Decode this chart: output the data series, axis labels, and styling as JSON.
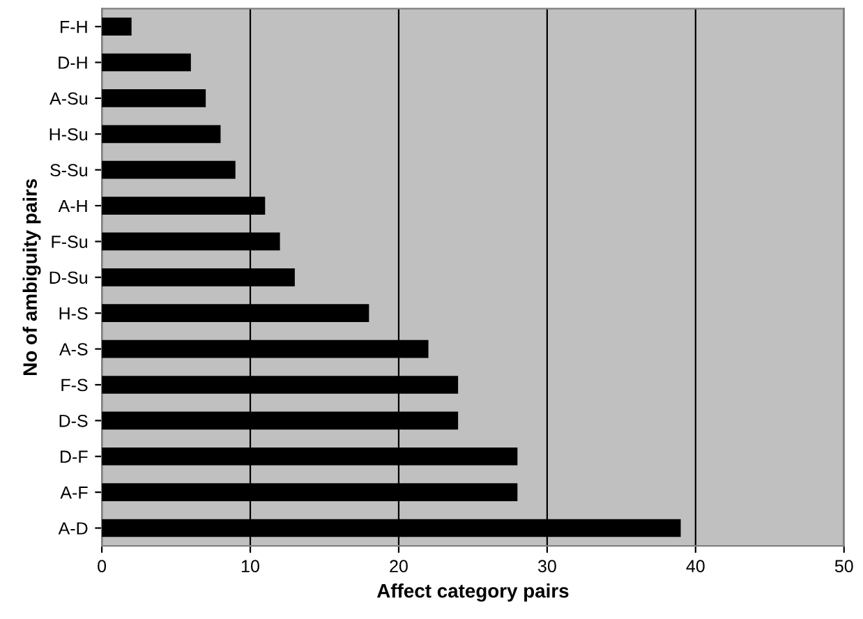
{
  "chart_data": {
    "type": "bar",
    "orientation": "horizontal",
    "xlabel": "Affect category pairs",
    "ylabel": "No of ambiguity pairs",
    "categories": [
      "F-H",
      "D-H",
      "A-Su",
      "H-Su",
      "S-Su",
      "A-H",
      "F-Su",
      "D-Su",
      "H-S",
      "A-S",
      "F-S",
      "D-S",
      "D-F",
      "A-F",
      "A-D"
    ],
    "values": [
      2,
      6,
      7,
      8,
      9,
      11,
      12,
      13,
      18,
      22,
      24,
      24,
      28,
      28,
      39
    ],
    "color": "#000000",
    "xlim": [
      0,
      50
    ],
    "xticks": [
      0,
      10,
      20,
      30,
      40,
      50
    ],
    "grid": "x",
    "legend": false
  }
}
